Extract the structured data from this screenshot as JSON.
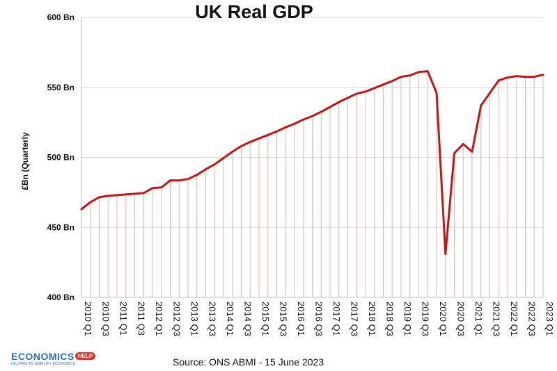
{
  "source": "Source: ONS ABMI - 15 June 2023",
  "logo": {
    "brand": "ECONOMICS",
    "badge": "HELP",
    "tagline": "HELPING TO SIMPLIFY ECONOMICS"
  },
  "colors": {
    "line": "#c41414",
    "grid": "#d9d9d9",
    "drop": "#e6b0ad",
    "logo": "#2a6fc9"
  },
  "chart_data": {
    "type": "line",
    "title": "UK Real GDP",
    "ylabel": "£Bn (Quarterly",
    "xlabel": "",
    "ylim": [
      400,
      600
    ],
    "yticks": [
      400,
      450,
      500,
      550,
      600
    ],
    "ytick_labels": [
      "400 Bn",
      "450 Bn",
      "500 Bn",
      "550 Bn",
      "600 Bn"
    ],
    "grid": true,
    "x": [
      "2010 Q1",
      "2010 Q2",
      "2010 Q3",
      "2010 Q4",
      "2011 Q1",
      "2011 Q2",
      "2011 Q3",
      "2011 Q4",
      "2012 Q1",
      "2012 Q2",
      "2012 Q3",
      "2012 Q4",
      "2013 Q1",
      "2013 Q2",
      "2013 Q3",
      "2013 Q4",
      "2014 Q1",
      "2014 Q2",
      "2014 Q3",
      "2014 Q4",
      "2015 Q1",
      "2015 Q2",
      "2015 Q3",
      "2015 Q4",
      "2016 Q1",
      "2016 Q2",
      "2016 Q3",
      "2016 Q4",
      "2017 Q1",
      "2017 Q2",
      "2017 Q3",
      "2017 Q4",
      "2018 Q1",
      "2018 Q2",
      "2018 Q3",
      "2018 Q4",
      "2019 Q1",
      "2019 Q2",
      "2019 Q3",
      "2019 Q4",
      "2020 Q1",
      "2020 Q2",
      "2020 Q3",
      "2020 Q4",
      "2021 Q1",
      "2021 Q2",
      "2021 Q3",
      "2021 Q4",
      "2022 Q1",
      "2022 Q2",
      "2022 Q3",
      "2022 Q4",
      "2023 Q1"
    ],
    "xtick_labels": [
      "2010 Q1",
      "2010 Q3",
      "2011 Q1",
      "2011 Q3",
      "2012 Q1",
      "2012 Q3",
      "2013 Q1",
      "2013 Q3",
      "2014 Q1",
      "2014 Q3",
      "2015 Q1",
      "2015 Q3",
      "2016 Q1",
      "2016 Q3",
      "2017 Q1",
      "2017 Q3",
      "2018 Q1",
      "2018 Q3",
      "2019 Q1",
      "2019 Q3",
      "2020 Q1",
      "2020 Q3",
      "2021 Q1",
      "2021 Q3",
      "2022 Q1",
      "2022 Q3",
      "2023 Q1"
    ],
    "series": [
      {
        "values": [
          463,
          468,
          471.5,
          472.5,
          473,
          473.5,
          474,
          474.5,
          478,
          478.5,
          483.5,
          483.5,
          484.5,
          487.5,
          491.5,
          495,
          499.5,
          504,
          508,
          511,
          513.5,
          516,
          518.5,
          521.5,
          524,
          527,
          529.5,
          532.5,
          536,
          539.5,
          542.5,
          545.5,
          547,
          549.5,
          552,
          554.5,
          557.5,
          558.5,
          561,
          561.5,
          546,
          431,
          503,
          509.5,
          504,
          537,
          546,
          555,
          557,
          558,
          557.5,
          557.5,
          559
        ]
      }
    ]
  }
}
